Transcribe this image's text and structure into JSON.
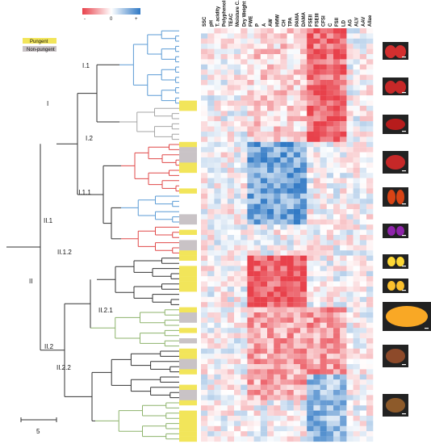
{
  "legend": {
    "pungent_label": "Pungent",
    "nonpungent_label": "Non-pungent",
    "pungent_color": "#f2e55a",
    "nonpungent_color": "#c9c3c6"
  },
  "color_scale": {
    "min_label": "-",
    "mid_label": "0",
    "max_label": "+",
    "neg_color": "#e8414b",
    "mid_color": "#ffffff",
    "pos_color": "#2f78c4"
  },
  "clusters": [
    {
      "id": "I",
      "label": "I"
    },
    {
      "id": "I.1",
      "label": "I.1"
    },
    {
      "id": "I.2",
      "label": "I.2"
    },
    {
      "id": "II",
      "label": "II"
    },
    {
      "id": "II.1",
      "label": "II.1"
    },
    {
      "id": "II.1.1",
      "label": "II.1.1"
    },
    {
      "id": "II.1.2",
      "label": "II.1.2"
    },
    {
      "id": "II.2",
      "label": "II.2"
    },
    {
      "id": "II.2.1",
      "label": "II.2.1"
    },
    {
      "id": "II.2.2",
      "label": "II.2.2"
    }
  ],
  "scale_bar": {
    "label": "5"
  },
  "columns": [
    "SSC",
    "pH",
    "T. acidity",
    "Polyphenols",
    "TEAC",
    "Moisture C.",
    "Dry Weight",
    "FWE",
    "P",
    "A",
    "AW",
    "HMW",
    "CH",
    "TPA",
    "PAMA",
    "DAMA",
    "FSEII",
    "FSEIII",
    "CFSI",
    "C",
    "FSII",
    "LD",
    "AG",
    "ALV",
    "AAV",
    "Allae"
  ],
  "branch_colors": {
    "blue": "#5b9bd5",
    "grey": "#a6a6a6",
    "red": "#e04848",
    "olive": "#8db36b",
    "black": "#333333"
  }
}
